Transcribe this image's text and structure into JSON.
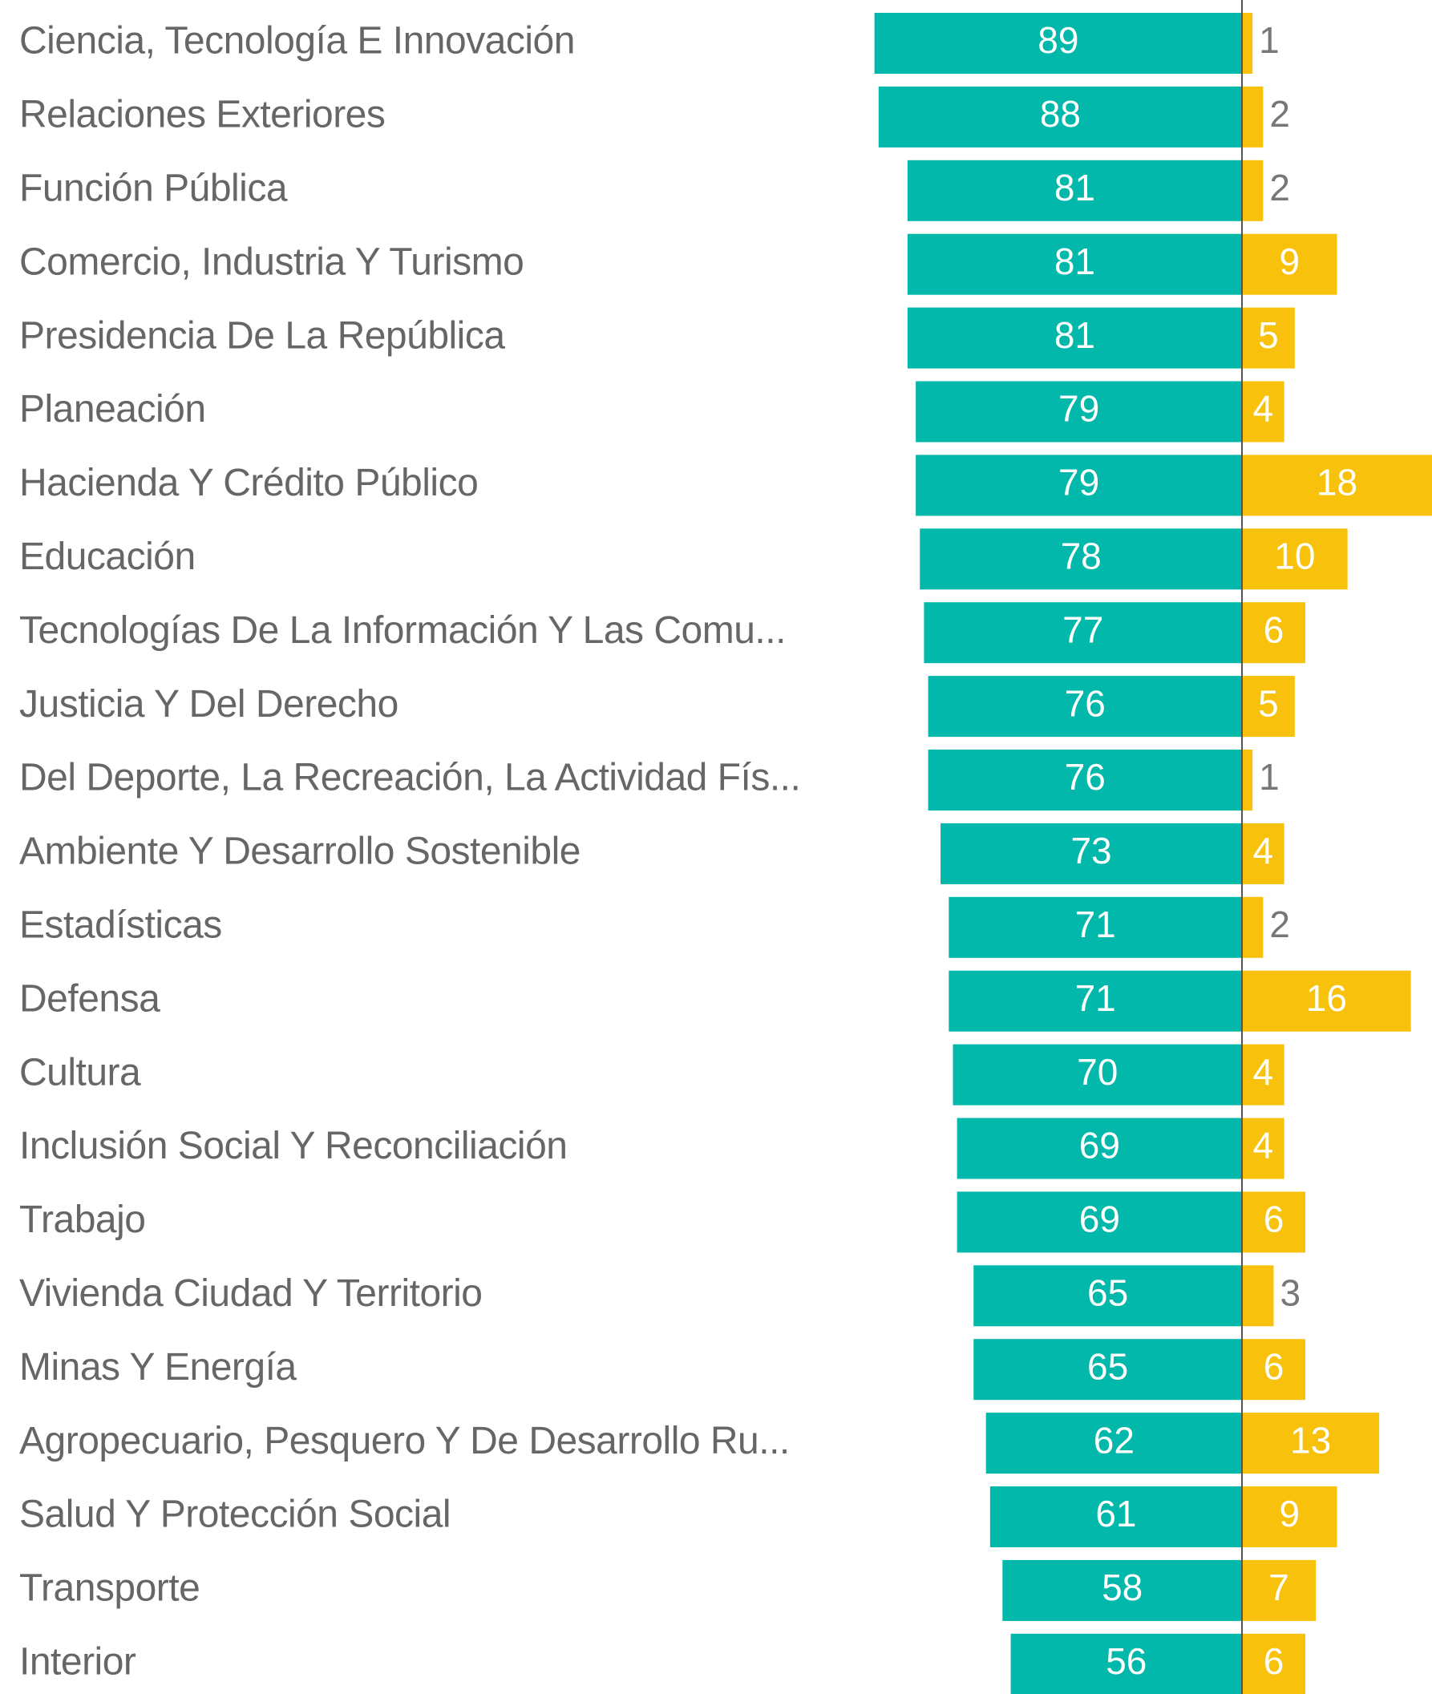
{
  "chart_data": {
    "type": "diverging-bar",
    "categories": [
      "Ciencia, Tecnología E Innovación",
      "Relaciones Exteriores",
      "Función Pública",
      "Comercio, Industria Y Turismo",
      "Presidencia De La República",
      "Planeación",
      "Hacienda Y Crédito Público",
      "Educación",
      "Tecnologías De La Información Y Las Comu...",
      "Justicia Y Del Derecho",
      "Del Deporte, La Recreación, La Actividad Fís...",
      "Ambiente Y Desarrollo Sostenible",
      "Estadísticas",
      "Defensa",
      "Cultura",
      "Inclusión Social Y Reconciliación",
      "Trabajo",
      "Vivienda Ciudad Y Territorio",
      "Minas Y Energía",
      "Agropecuario, Pesquero Y De Desarrollo Ru...",
      "Salud Y Protección Social",
      "Transporte",
      "Interior"
    ],
    "series": [
      {
        "color": "#01b8aa",
        "direction": "left",
        "xlim": [
          0,
          100
        ],
        "values": [
          89,
          88,
          81,
          81,
          81,
          79,
          79,
          78,
          77,
          76,
          76,
          73,
          71,
          71,
          70,
          69,
          69,
          65,
          65,
          62,
          61,
          58,
          56
        ]
      },
      {
        "color": "#f8c10b",
        "direction": "right",
        "xlim": [
          0,
          18
        ],
        "values": [
          1,
          2,
          2,
          9,
          5,
          4,
          18,
          10,
          6,
          5,
          1,
          4,
          2,
          16,
          4,
          4,
          6,
          3,
          6,
          13,
          9,
          7,
          6
        ]
      }
    ]
  }
}
